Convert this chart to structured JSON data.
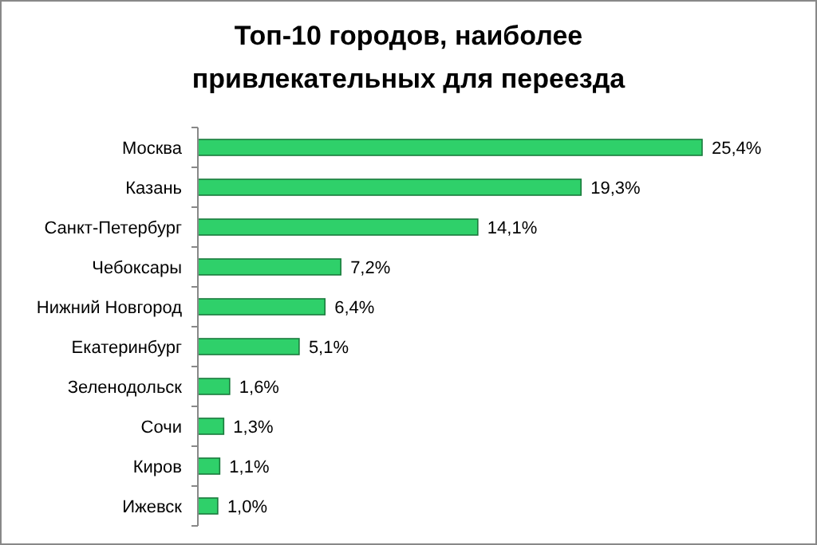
{
  "chart_data": {
    "type": "bar",
    "orientation": "horizontal",
    "title": "Топ-10 городов, наиболее привлекательных для переезда",
    "categories": [
      "Москва",
      "Казань",
      "Санкт-Петербург",
      "Чебоксары",
      "Нижний Новгород",
      "Екатеринбург",
      "Зеленодольск",
      "Сочи",
      "Киров",
      "Ижевск"
    ],
    "values": [
      25.4,
      19.3,
      14.1,
      7.2,
      6.4,
      5.1,
      1.6,
      1.3,
      1.1,
      1.0
    ],
    "value_labels": [
      "25,4%",
      "19,3%",
      "14,1%",
      "7,2%",
      "6,4%",
      "5,1%",
      "1,6%",
      "1,3%",
      "1,1%",
      "1,0%"
    ],
    "color": "#2fd06a"
  }
}
